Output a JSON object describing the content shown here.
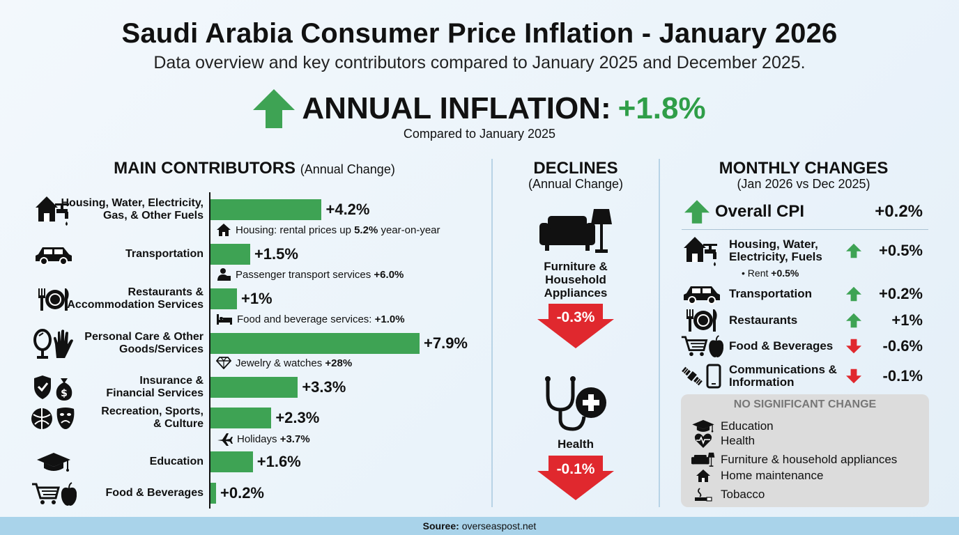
{
  "header": {
    "title": "Saudi Arabia Consumer Price Inflation - January 2026",
    "subtitle": "Data overview and key contributors compared to January 2025 and December 2025.",
    "headline_label": "ANNUAL INFLATION:",
    "headline_value": "+1.8%",
    "compared": "Compared to January 2025"
  },
  "colors": {
    "green": "#3ea354",
    "red": "#e0282e",
    "text_green": "#2f9e48"
  },
  "contributors": {
    "title": "MAIN CONTRIBUTORS",
    "title_sub": "(Annual Change)"
  },
  "chart_data": {
    "type": "bar",
    "orientation": "horizontal",
    "title": "MAIN CONTRIBUTORS (Annual Change)",
    "xlim": [
      0,
      8.5
    ],
    "categories": [
      "Housing, Water, Electricity, Gas, & Other Fuels",
      "Transportation",
      "Restaurants & Accommodation Services",
      "Personal Care & Other Goods/Services",
      "Insurance & Financial Services",
      "Recreation, Sports, & Culture",
      "Education",
      "Food & Beverages"
    ],
    "values": [
      4.2,
      1.5,
      1.0,
      7.9,
      3.3,
      2.3,
      1.6,
      0.2
    ],
    "value_labels": [
      "+4.2%",
      "+1.5%",
      "+1%",
      "+7.9%",
      "+3.3%",
      "+2.3%",
      "+1.6%",
      "+0.2%"
    ],
    "label_lines": [
      [
        "Housing, Water, Electricity,",
        "Gas, & Other Fuels"
      ],
      [
        "Transportation"
      ],
      [
        "Restaurants &",
        "Accommodation Services"
      ],
      [
        "Personal Care & Other",
        "Goods/Services"
      ],
      [
        "Insurance &",
        "Financial Services"
      ],
      [
        "Recreation, Sports,",
        "& Culture"
      ],
      [
        "Education"
      ],
      [
        "Food & Beverages"
      ]
    ],
    "icons": [
      "house-faucet-icon",
      "car-icon",
      "plate-cutlery-icon",
      "mirror-hand-icon",
      "shield-money-bag-icon",
      "ball-masks-icon",
      "graduation-cap-icon",
      "cart-apple-icon"
    ],
    "notes": [
      {
        "icon": "house-icon",
        "text": "Housing: rental prices up ",
        "bold": "5.2%",
        "tail": " year-on-year"
      },
      {
        "icon": "person-icon",
        "text": "Passenger transport services ",
        "bold": "+6.0%",
        "tail": ""
      },
      {
        "icon": "bed-icon",
        "text": "Food and beverage services: ",
        "bold": "+1.0%",
        "tail": ""
      },
      {
        "icon": "diamond-icon",
        "text": "Jewelry & watches ",
        "bold": "+28%",
        "tail": ""
      },
      null,
      {
        "icon": "plane-icon",
        "text": "Holidays ",
        "bold": "+3.7%",
        "tail": ""
      },
      null,
      null
    ]
  },
  "declines": {
    "title": "DECLINES",
    "subtitle": "(Annual Change)",
    "items": [
      {
        "label_lines": [
          "Furniture &",
          "Household",
          "Appliances"
        ],
        "value": "-0.3%",
        "icon": "sofa-lamp-icon"
      },
      {
        "label_lines": [
          "Health"
        ],
        "value": "-0.1%",
        "icon": "stethoscope-plus-icon"
      }
    ]
  },
  "monthly": {
    "title": "MONTHLY CHANGES",
    "subtitle": "(Jan 2026 vs Dec 2025)",
    "overall_label": "Overall CPI",
    "overall_value": "+0.2%",
    "rows": [
      {
        "label_lines": [
          "Housing, Water,",
          "Electricity, Fuels"
        ],
        "value": "+0.5%",
        "dir": "up",
        "icon": "house-faucet-icon",
        "sub_text": "Rent ",
        "sub_bold": "+0.5%"
      },
      {
        "label_lines": [
          "Transportation"
        ],
        "value": "+0.2%",
        "dir": "up",
        "icon": "car-icon"
      },
      {
        "label_lines": [
          "Restaurants"
        ],
        "value": "+1%",
        "dir": "up",
        "icon": "plate-cutlery-icon"
      },
      {
        "label_lines": [
          "Food & Beverages"
        ],
        "value": "-0.6%",
        "dir": "down",
        "icon": "cart-apple-icon"
      },
      {
        "label_lines": [
          "Communications &",
          "Information"
        ],
        "value": "-0.1%",
        "dir": "down",
        "icon": "satellite-phone-icon"
      }
    ],
    "no_change_title": "NO SIGNIFICANT CHANGE",
    "no_change_items": [
      {
        "label": "Education",
        "icon": "graduation-cap-icon"
      },
      {
        "label": "Health",
        "icon": "heart-pulse-icon"
      },
      {
        "label": "Furniture & household appliances",
        "icon": "sofa-lamp-icon"
      },
      {
        "label": "Home maintenance",
        "icon": "house-icon"
      },
      {
        "label": "Tobacco",
        "icon": "cigarette-icon"
      }
    ]
  },
  "footer": {
    "label": "Soureе:",
    "value": "overseaspost.net"
  }
}
